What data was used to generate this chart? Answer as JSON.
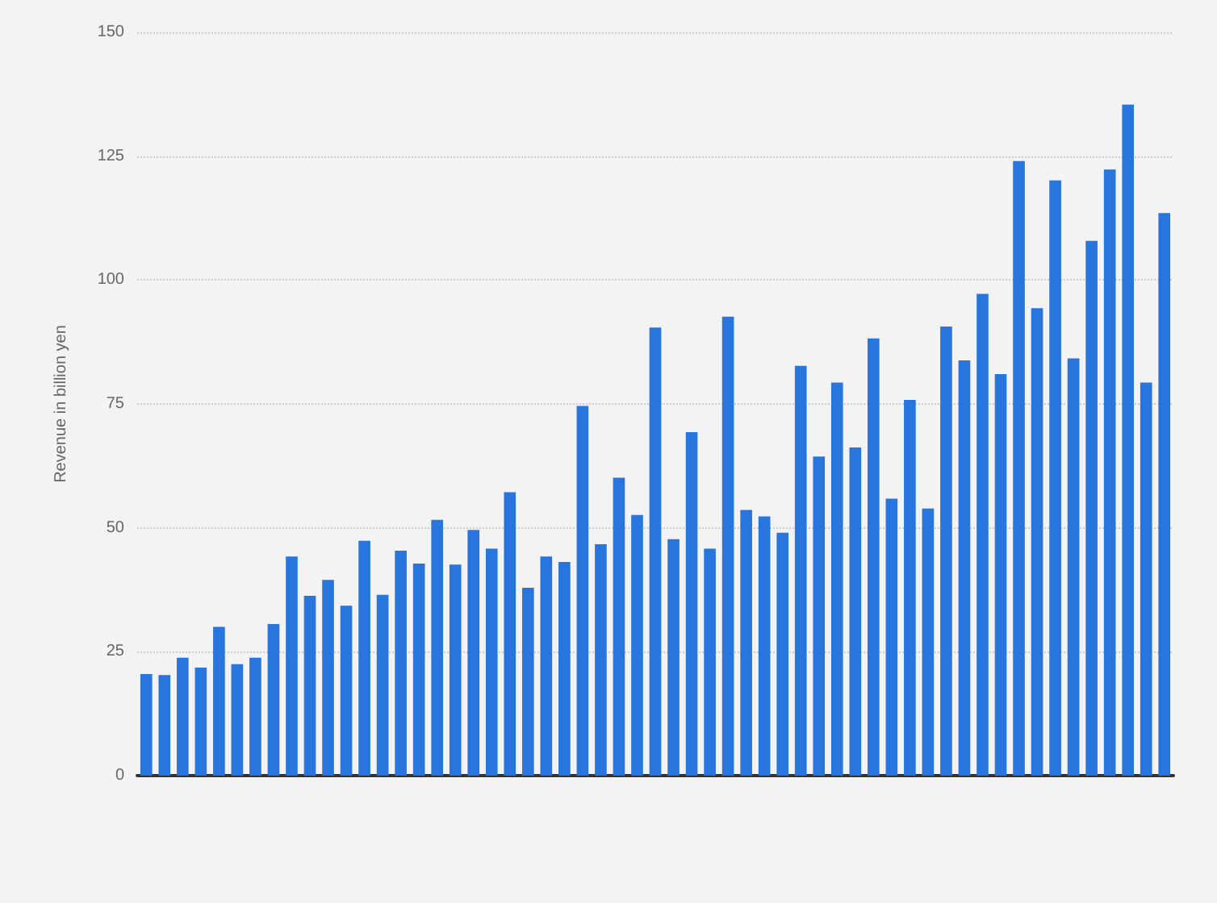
{
  "chart_data": {
    "type": "bar",
    "ylabel": "Revenue in billion yen",
    "categories": [
      null,
      null,
      null,
      null,
      null,
      null,
      null,
      null,
      null,
      null,
      null,
      null,
      null,
      null,
      null,
      null,
      null,
      null,
      null,
      null,
      null,
      null,
      null,
      null,
      null,
      null,
      null,
      null,
      null,
      null,
      null,
      null,
      null,
      null,
      null,
      null,
      null,
      null,
      null,
      null,
      null,
      null,
      null,
      null,
      null,
      null,
      null,
      null,
      null,
      null,
      null,
      null,
      null,
      null,
      null,
      null,
      null
    ],
    "values": [
      20.5,
      20.3,
      23.8,
      21.8,
      30,
      22.5,
      23.8,
      30.6,
      44.2,
      36.3,
      39.5,
      34.3,
      47.4,
      36.5,
      45.4,
      42.8,
      51.6,
      42.6,
      49.6,
      45.8,
      57.2,
      37.9,
      44.2,
      43.1,
      74.6,
      46.7,
      60.1,
      52.6,
      90.4,
      47.7,
      69.3,
      45.8,
      92.6,
      53.6,
      52.3,
      49,
      82.7,
      64.4,
      79.3,
      66.2,
      88.2,
      55.9,
      75.8,
      53.9,
      90.6,
      83.8,
      97.2,
      81,
      124,
      94.3,
      120.1,
      84.2,
      107.9,
      122.3,
      135.4,
      79.3,
      113.5
    ],
    "color": "#2876dd",
    "ylim": [
      0,
      150
    ],
    "yticks": [
      0,
      25,
      50,
      75,
      100,
      125,
      150
    ],
    "grid": "y",
    "tick_labels": "y"
  }
}
